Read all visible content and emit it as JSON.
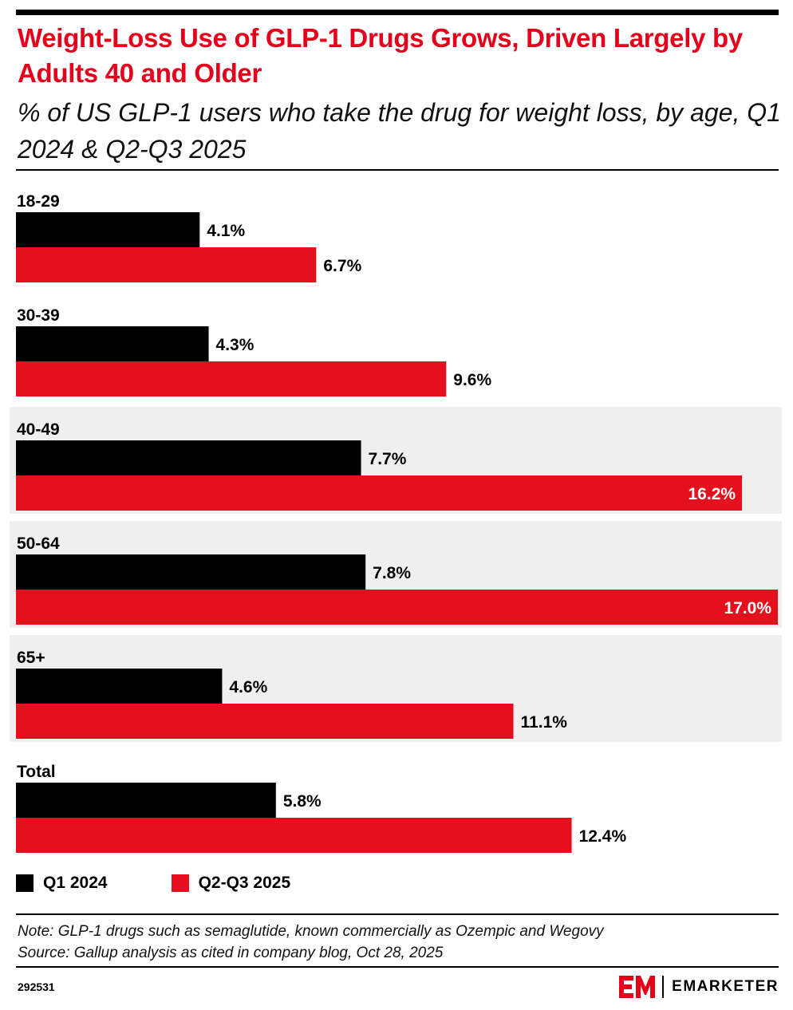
{
  "header": {
    "title": "Weight-Loss Use of GLP-1 Drugs Grows, Driven Largely by Adults 40 and Older",
    "subtitle": "% of US GLP-1 users who take the drug for weight loss, by age, Q1 2024 & Q2-Q3 2025"
  },
  "colors": {
    "q1_2024": "#000000",
    "q2_q3_2025": "#e4101e",
    "highlight_band": "#efefef",
    "title": "#e4001b"
  },
  "chart_data": {
    "type": "bar",
    "orientation": "horizontal",
    "categories": [
      "18-29",
      "30-39",
      "40-49",
      "50-64",
      "65+",
      "Total"
    ],
    "highlighted_categories": [
      "40-49",
      "50-64",
      "65+"
    ],
    "series": [
      {
        "name": "Q1 2024",
        "values": [
          4.1,
          4.3,
          7.7,
          7.8,
          4.6,
          5.8
        ],
        "labels": [
          "4.1%",
          "4.3%",
          "7.7%",
          "7.8%",
          "4.6%",
          "5.8%"
        ]
      },
      {
        "name": "Q2-Q3 2025",
        "values": [
          6.7,
          9.6,
          16.2,
          17.0,
          11.1,
          12.4
        ],
        "labels": [
          "6.7%",
          "9.6%",
          "16.2%",
          "17.0%",
          "11.1%",
          "12.4%"
        ]
      }
    ],
    "unit": "%",
    "xlim": [
      0,
      17.0
    ],
    "grid": false,
    "legend_position": "bottom-left"
  },
  "footer": {
    "note": "Note: GLP-1 drugs such as semaglutide, known commercially as Ozempic and Wegovy",
    "source": "Source: Gallup analysis as cited in company blog, Oct 28, 2025",
    "chart_id": "292531",
    "brand": "EMARKETER",
    "brand_logo_text": "EM"
  }
}
